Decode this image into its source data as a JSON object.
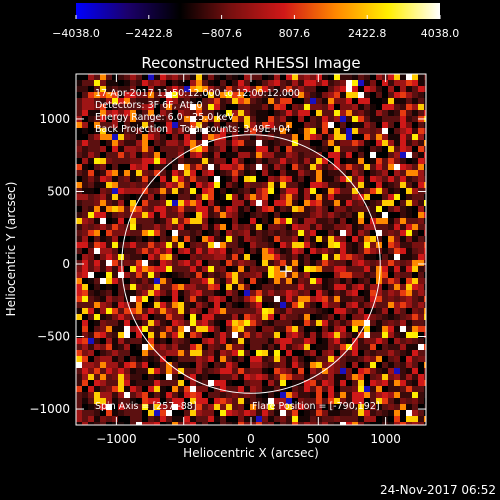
{
  "chart_data": {
    "type": "heatmap",
    "title": "Reconstructed RHESSI Image",
    "xlabel": "Heliocentric X (arcsec)",
    "ylabel": "Heliocentric Y (arcsec)",
    "xlim": [
      -1300,
      1300
    ],
    "ylim": [
      -1110,
      1310
    ],
    "x_ticks": [
      -1000,
      -500,
      0,
      500,
      1000
    ],
    "x_tick_labels": [
      "−1000",
      "−500",
      "0",
      "500",
      "1000"
    ],
    "y_ticks": [
      -1000,
      -500,
      0,
      500,
      1000
    ],
    "y_tick_labels": [
      "−1000",
      "−500",
      "0",
      "500",
      "1000"
    ],
    "colorbar": {
      "range": [
        -4038.0,
        4038.0
      ],
      "tick_values": [
        -4038.0,
        -2422.8,
        -807.6,
        807.6,
        2422.8,
        4038.0
      ],
      "tick_labels": [
        "−4038.0",
        "−2422.8",
        "−807.6",
        "807.6",
        "2422.8",
        "4038.0"
      ],
      "colors": [
        "#0000ff",
        "#1b006a",
        "#000000",
        "#7a1010",
        "#d01818",
        "#ff8800",
        "#ffee00",
        "#ffffff"
      ]
    },
    "solar_limb": {
      "center": [
        0,
        0
      ],
      "radius_arcsec": 960
    },
    "flare_marker": {
      "x": 260,
      "y": -50,
      "symbol": "+"
    },
    "annotations": [
      "17-Apr-2017 11:50:12.000 to 12:00:12.000",
      "Detectors: 3F 6F, Att 0",
      "Energy Range: 6.0 - 25.0 keV",
      "Back Projection    Total counts: 3.49E+04",
      "Spin Axis = [257,-88]",
      "Flare Position = [-790,192]"
    ],
    "grid": false
  },
  "footer": {
    "timestamp": "24-Nov-2017 06:52"
  }
}
